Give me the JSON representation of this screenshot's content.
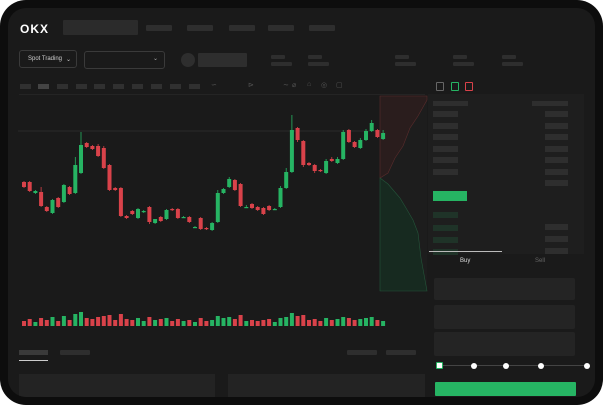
{
  "header": {
    "logo": "OKX"
  },
  "market": {
    "mode_select": "Spot Trading",
    "pair_select": ""
  },
  "trade_panel": {
    "tabs": [
      {
        "label": "Buy",
        "active": true
      },
      {
        "label": "Sell",
        "active": false
      }
    ],
    "slider_percent": 0,
    "slider_stops": 5
  },
  "colors": {
    "up": "#26b463",
    "down": "#d9424a",
    "background": "#1a1a1a",
    "panel": "#242424"
  },
  "icons": [
    "logo",
    "chevron-down-icon",
    "line-icon",
    "ruler-icon",
    "magnet-icon",
    "eye-icon",
    "screenshot-icon",
    "orderbook-both-icon",
    "orderbook-bids-icon",
    "orderbook-asks-icon"
  ],
  "chart_data": {
    "type": "candlestick",
    "candles": [
      [
        68,
        63,
        69,
        62
      ],
      [
        68,
        59,
        69,
        58
      ],
      [
        57,
        59,
        60,
        56
      ],
      [
        58,
        44,
        63,
        43
      ],
      [
        43,
        39,
        44,
        38
      ],
      [
        37,
        50,
        51,
        36
      ],
      [
        52,
        43,
        53,
        42
      ],
      [
        48,
        65,
        66,
        47
      ],
      [
        63,
        56,
        64,
        55
      ],
      [
        57,
        85,
        93,
        56
      ],
      [
        77,
        105,
        118,
        76
      ],
      [
        107,
        103,
        108,
        102
      ],
      [
        104,
        101,
        105,
        100
      ],
      [
        104,
        94,
        106,
        93
      ],
      [
        102,
        82,
        104,
        81
      ],
      [
        85,
        60,
        86,
        59
      ],
      [
        62,
        60,
        63,
        59
      ],
      [
        62,
        34,
        63,
        33
      ],
      [
        34,
        32,
        35,
        31
      ],
      [
        39,
        36,
        40,
        35
      ],
      [
        32,
        41,
        42,
        31
      ],
      [
        38,
        39,
        40,
        37
      ],
      [
        43,
        28,
        44,
        26
      ],
      [
        27,
        31,
        31,
        26
      ],
      [
        33,
        29,
        34,
        28
      ],
      [
        31,
        40,
        41,
        30
      ],
      [
        41,
        40,
        42,
        39
      ],
      [
        41,
        32,
        42,
        31
      ],
      [
        33,
        33,
        34,
        32
      ],
      [
        33,
        28,
        34,
        27
      ],
      [
        23,
        23,
        24,
        22
      ],
      [
        32,
        21,
        33,
        20
      ],
      [
        22,
        21,
        23,
        20
      ],
      [
        20,
        27,
        28,
        19
      ],
      [
        28,
        57,
        60,
        27
      ],
      [
        57,
        61,
        62,
        56
      ],
      [
        63,
        71,
        73,
        62
      ],
      [
        70,
        60,
        71,
        59
      ],
      [
        66,
        44,
        67,
        43
      ],
      [
        43,
        43,
        45,
        42
      ],
      [
        46,
        42,
        47,
        41
      ],
      [
        43,
        40,
        44,
        39
      ],
      [
        42,
        36,
        43,
        35
      ],
      [
        44,
        40,
        45,
        39
      ],
      [
        41,
        41,
        42,
        40
      ],
      [
        43,
        62,
        64,
        42
      ],
      [
        62,
        78,
        82,
        61
      ],
      [
        78,
        120,
        135,
        77
      ],
      [
        122,
        110,
        123,
        108
      ],
      [
        109,
        85,
        110,
        83
      ],
      [
        87,
        85,
        88,
        84
      ],
      [
        85,
        79,
        86,
        77
      ],
      [
        80,
        79,
        81,
        78
      ],
      [
        77,
        89,
        91,
        76
      ],
      [
        91,
        89,
        93,
        88
      ],
      [
        87,
        91,
        93,
        86
      ],
      [
        91,
        118,
        120,
        90
      ],
      [
        120,
        108,
        121,
        107
      ],
      [
        108,
        103,
        109,
        102
      ],
      [
        102,
        110,
        112,
        101
      ],
      [
        110,
        119,
        121,
        109
      ],
      [
        119,
        127,
        130,
        118
      ],
      [
        120,
        113,
        121,
        112
      ],
      [
        111,
        117,
        120,
        110
      ]
    ],
    "volume": [
      5,
      7,
      4,
      8,
      6,
      9,
      5,
      10,
      6,
      12,
      14,
      8,
      7,
      9,
      10,
      11,
      6,
      12,
      7,
      6,
      8,
      5,
      9,
      6,
      7,
      8,
      5,
      7,
      5,
      6,
      4,
      8,
      5,
      6,
      10,
      8,
      9,
      7,
      11,
      5,
      6,
      5,
      6,
      7,
      4,
      8,
      9,
      13,
      10,
      11,
      6,
      7,
      5,
      8,
      6,
      7,
      9,
      8,
      6,
      7,
      8,
      9,
      6,
      5
    ]
  }
}
